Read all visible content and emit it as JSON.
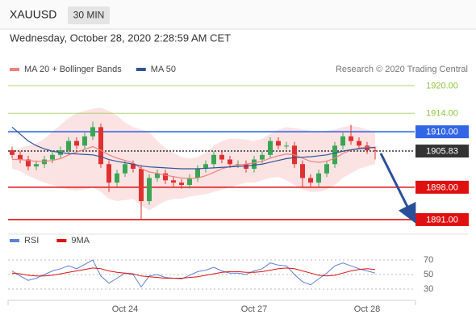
{
  "header": {
    "symbol": "XAUUSD",
    "timeframe": "30 MIN",
    "datetime": "Wednesday, October 28, 2020 2:28:59 AM CET",
    "credit": "Research © 2020 Trading Central"
  },
  "chart_data": {
    "type": "candlestick",
    "up_color": "#3aa655",
    "down_color": "#e03030",
    "xlim": [
      -0.5,
      49.5
    ],
    "xticks": [
      {
        "value": 14,
        "label": "Oct 24"
      },
      {
        "value": 30,
        "label": "Oct 27"
      },
      {
        "value": 44,
        "label": "Oct 28"
      }
    ],
    "ylim": [
      1889,
      1922
    ],
    "open": [
      1906,
      1905,
      1904,
      1902.5,
      1903,
      1904,
      1905,
      1906,
      1908,
      1907,
      1909,
      1911,
      1903,
      1899,
      1901,
      1903,
      1902,
      1895,
      1900,
      1901,
      1899.5,
      1899,
      1898.5,
      1900,
      1902,
      1903,
      1905,
      1904,
      1903,
      1903,
      1902,
      1904,
      1905,
      1908,
      1907,
      1907,
      1903,
      1900,
      1899,
      1901,
      1903,
      1907,
      1909,
      1908,
      1907,
      1906
    ],
    "high": [
      1906.8,
      1905.8,
      1904.8,
      1903.8,
      1904.8,
      1905.8,
      1906.8,
      1908.8,
      1908.8,
      1909.8,
      1912.2,
      1911.8,
      1903.8,
      1901.8,
      1903.8,
      1903.8,
      1902.8,
      1900.8,
      1901.8,
      1901.8,
      1900.3,
      1899.8,
      1900.8,
      1902.8,
      1903.8,
      1905.8,
      1905.8,
      1904.8,
      1903.8,
      1903.8,
      1904.8,
      1905.8,
      1908.8,
      1908.8,
      1907.8,
      1907.8,
      1903.8,
      1900.8,
      1901.8,
      1903.8,
      1907.8,
      1909.8,
      1911.5,
      1908.8,
      1907.8,
      1906.8
    ],
    "low": [
      1904.2,
      1903.2,
      1901.7,
      1901.7,
      1902.2,
      1903.2,
      1904.2,
      1905.2,
      1906.2,
      1906.2,
      1908.2,
      1902.2,
      1897,
      1898.2,
      1900.2,
      1901.2,
      1891,
      1894.2,
      1899.2,
      1898.7,
      1898.2,
      1897.7,
      1897.7,
      1899.2,
      1901.2,
      1902.2,
      1903.2,
      1902.2,
      1902.2,
      1901.2,
      1901.2,
      1903.2,
      1904.2,
      1906.2,
      1906.2,
      1902.2,
      1898,
      1898.2,
      1898.2,
      1900.2,
      1902.2,
      1906.2,
      1907.2,
      1906.2,
      1905.2,
      1904
    ],
    "close": [
      1905,
      1904,
      1902.5,
      1903,
      1904,
      1905,
      1906,
      1908,
      1907,
      1909,
      1911,
      1903,
      1899,
      1901,
      1903,
      1902,
      1895,
      1900,
      1901,
      1899.5,
      1899,
      1898.5,
      1900,
      1902,
      1903,
      1905,
      1904,
      1903,
      1903,
      1902,
      1904,
      1905,
      1908,
      1907,
      1907,
      1903,
      1900,
      1899,
      1901,
      1903,
      1907,
      1909,
      1908,
      1907,
      1906,
      1905.83
    ],
    "series": [
      {
        "name": "MA 20 + Bollinger Bands",
        "color": "#f08080",
        "values": [
          1904,
          1904,
          1903.8,
          1903.6,
          1903.6,
          1903.8,
          1904.2,
          1905,
          1905.6,
          1906.2,
          1906.8,
          1906,
          1905,
          1904.3,
          1903.8,
          1903.3,
          1902,
          1901.3,
          1901,
          1900.6,
          1900.3,
          1900,
          1899.9,
          1900,
          1900.5,
          1901.2,
          1902,
          1902.5,
          1902.8,
          1903,
          1903.3,
          1903.6,
          1904.3,
          1904.8,
          1905.2,
          1905,
          1904.3,
          1903.6,
          1903.4,
          1903.6,
          1904.3,
          1905.3,
          1906,
          1906.5,
          1906.7,
          1906.6
        ],
        "upper": [
          1906,
          1906.5,
          1907,
          1907.5,
          1908.5,
          1910,
          1911.5,
          1913,
          1914,
          1914.5,
          1915,
          1915.2,
          1914.5,
          1913.5,
          1912,
          1911,
          1910.5,
          1910,
          1908,
          1906.5,
          1905.5,
          1904.5,
          1904.2,
          1904.5,
          1905.5,
          1907,
          1908,
          1908.5,
          1908.5,
          1908.3,
          1908,
          1908.5,
          1909.5,
          1910.5,
          1911,
          1910.8,
          1910.5,
          1910.2,
          1910,
          1910.2,
          1910.5,
          1911,
          1911.3,
          1911,
          1910.5,
          1910
        ],
        "lower": [
          1902,
          1901.5,
          1900.5,
          1899.7,
          1899,
          1898.5,
          1898,
          1897.5,
          1897.3,
          1897.5,
          1898,
          1897,
          1895.5,
          1895,
          1895.2,
          1895.5,
          1894,
          1893,
          1894,
          1895,
          1895.5,
          1895.5,
          1896,
          1896.2,
          1896.5,
          1897,
          1897.5,
          1898,
          1898.5,
          1899,
          1899,
          1899.5,
          1900,
          1900.2,
          1899.5,
          1898.5,
          1897.5,
          1897,
          1897,
          1897.5,
          1898.5,
          1900,
          1901,
          1902,
          1902.5,
          1903
        ]
      },
      {
        "name": "MA 50",
        "color": "#2f5597",
        "values": [
          1911,
          1909.5,
          1908,
          1907,
          1906.3,
          1905.8,
          1905.5,
          1905.3,
          1905.2,
          1905.1,
          1905,
          1904.6,
          1904,
          1903.6,
          1903.3,
          1903,
          1902.6,
          1902.4,
          1902.3,
          1902.2,
          1902.1,
          1902,
          1902,
          1902,
          1902.1,
          1902.2,
          1902.3,
          1902.4,
          1902.5,
          1902.6,
          1902.8,
          1903,
          1903.4,
          1903.8,
          1904.2,
          1904.4,
          1904.5,
          1904.6,
          1904.8,
          1905,
          1905.4,
          1905.8,
          1906.1,
          1906.3,
          1906.5,
          1906.6
        ]
      }
    ],
    "levels": [
      {
        "value": 1920,
        "label": "1920.00",
        "color": "#8cc63f",
        "boxed": false,
        "dotted": false
      },
      {
        "value": 1914,
        "label": "1914.00",
        "color": "#8cc63f",
        "boxed": false,
        "dotted": false
      },
      {
        "value": 1910,
        "label": "1910.00",
        "color": "#3366e6",
        "boxed": true,
        "dotted": false
      },
      {
        "value": 1905.83,
        "label": "1905.83",
        "color": "#333333",
        "boxed": true,
        "dotted": true
      },
      {
        "value": 1898,
        "label": "1898.00",
        "color": "#e01010",
        "boxed": true,
        "dotted": false
      },
      {
        "value": 1891,
        "label": "1891.00",
        "color": "#e01010",
        "boxed": true,
        "dotted": false
      }
    ],
    "rsi": {
      "ylim": [
        20,
        80
      ],
      "yticks": [
        30,
        50,
        70
      ],
      "series": [
        {
          "name": "RSI",
          "color": "#5b7fdb",
          "values": [
            55,
            48,
            42,
            45,
            50,
            55,
            58,
            62,
            58,
            64,
            70,
            48,
            38,
            45,
            52,
            50,
            33,
            48,
            50,
            46,
            45,
            44,
            49,
            54,
            56,
            60,
            55,
            52,
            52,
            50,
            55,
            58,
            66,
            63,
            62,
            50,
            40,
            36,
            44,
            52,
            62,
            66,
            62,
            58,
            55,
            52
          ]
        },
        {
          "name": "9MA",
          "color": "#e01010",
          "values": [
            52,
            51,
            49,
            48,
            48,
            49,
            51,
            53,
            55,
            57,
            59,
            58,
            55,
            53,
            52,
            51,
            48,
            47,
            46,
            45,
            45,
            45,
            46,
            47,
            49,
            51,
            53,
            54,
            54,
            53,
            53,
            54,
            56,
            58,
            59,
            58,
            55,
            52,
            49,
            48,
            49,
            52,
            55,
            57,
            58,
            57
          ]
        }
      ]
    }
  }
}
